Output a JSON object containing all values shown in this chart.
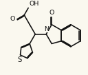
{
  "bg_color": "#faf8ef",
  "line_color": "#111111",
  "lw": 1.15,
  "fs": 6.8,
  "xlim": [
    -1,
    11
  ],
  "ylim": [
    -0.5,
    9
  ],
  "fig_w": 1.28,
  "fig_h": 1.09,
  "dpi": 100
}
